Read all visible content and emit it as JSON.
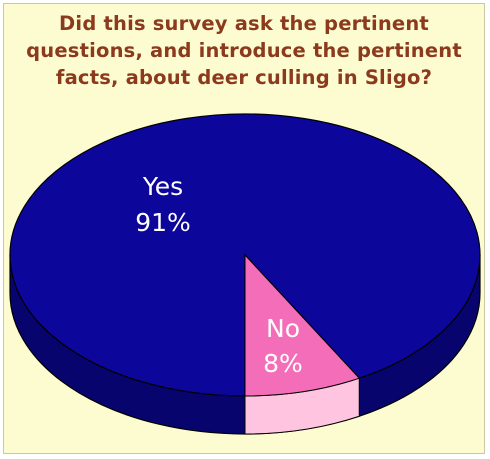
{
  "chart_data": {
    "type": "pie",
    "title_lines": [
      "Did this survey ask the pertinent",
      "questions, and introduce the pertinent",
      "facts, about deer culling in Sligo?"
    ],
    "categories": [
      "Yes",
      "No"
    ],
    "values": [
      91,
      8
    ],
    "labels": [
      {
        "name": "Yes",
        "percent": "91%"
      },
      {
        "name": "No",
        "percent": "8%"
      }
    ],
    "style": "3d-tilted",
    "legend": "none"
  },
  "colors": {
    "background": "#fdfbd0",
    "title": "#8b3a1e",
    "yes_slice": "#0c079a",
    "yes_side": "#08046e",
    "no_slice": "#f36db8",
    "no_side": "#ffc4df",
    "edge": "#000000",
    "label": "#ffffff"
  }
}
